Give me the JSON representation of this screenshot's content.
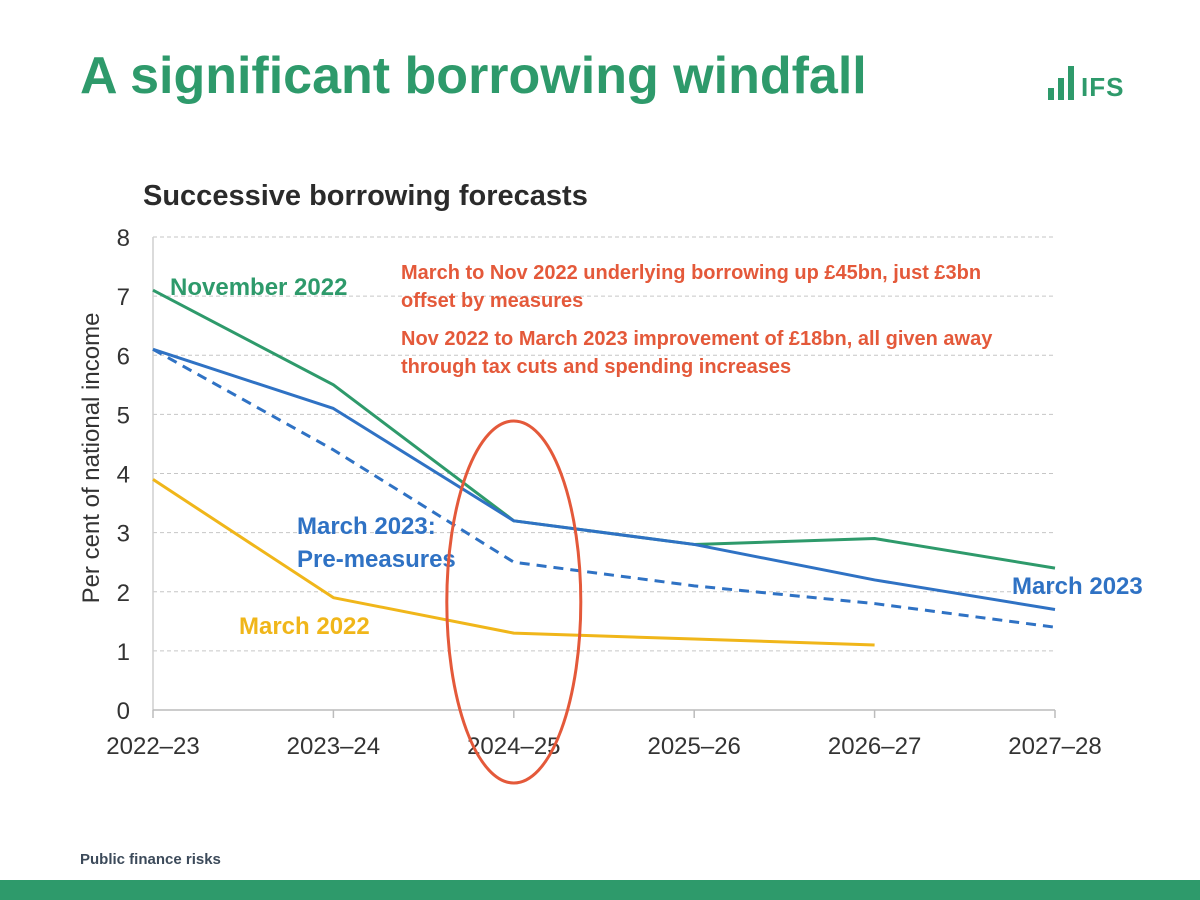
{
  "slide": {
    "title": "A significant borrowing windfall",
    "footer": "Public finance risks"
  },
  "logo": {
    "text": "IFS",
    "icon": "bar-chart-icon",
    "color": "#2e9a6b"
  },
  "chart_data": {
    "type": "line",
    "title": "Successive borrowing forecasts",
    "xlabel": "",
    "ylabel": "Per cent of national income",
    "categories": [
      "2022–23",
      "2023–24",
      "2024–25",
      "2025–26",
      "2026–27",
      "2027–28"
    ],
    "ylim": [
      0,
      8
    ],
    "yticks": [
      0,
      1,
      2,
      3,
      4,
      5,
      6,
      7,
      8
    ],
    "grid": true,
    "series": [
      {
        "name": "November 2022",
        "color": "#2e9a6b",
        "dash": false,
        "values": [
          7.1,
          5.5,
          3.2,
          2.8,
          2.9,
          2.4
        ]
      },
      {
        "name": "March 2023",
        "color": "#2f72c4",
        "dash": false,
        "values": [
          6.1,
          5.1,
          3.2,
          2.8,
          2.2,
          1.7
        ]
      },
      {
        "name": "March 2023: Pre-measures",
        "color": "#2f72c4",
        "dash": true,
        "values": [
          6.1,
          4.4,
          2.5,
          2.1,
          1.8,
          1.4
        ]
      },
      {
        "name": "March 2022",
        "color": "#f0b61a",
        "dash": false,
        "values": [
          3.9,
          1.9,
          1.3,
          1.2,
          1.1,
          null
        ]
      }
    ],
    "annotations": [
      "March to Nov 2022 underlying borrowing up £45bn, just £3bn offset by measures",
      "Nov 2022 to March 2023 improvement of £18bn, all given away through tax cuts and spending increases"
    ],
    "annotation_color": "#e4593a",
    "highlight": {
      "category": "2024–25",
      "color": "#e4593a"
    }
  }
}
